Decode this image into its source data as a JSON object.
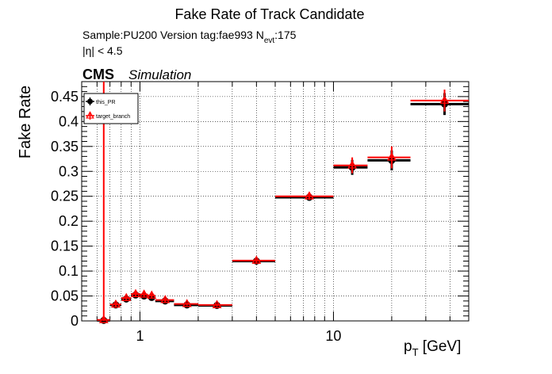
{
  "chart_data": {
    "type": "scatter",
    "title": "Fake Rate of Track Candidate",
    "info_line1": "Sample:PU200   Version tag:fae993  N",
    "info_line1_sub": "evt",
    "info_line1_tail": ":175",
    "info_line2": "|η| < 4.5",
    "cms_label": "CMS",
    "cms_sublabel": "Simulation",
    "xlabel_main": "p",
    "xlabel_sub": "T",
    "xlabel_unit": " [GeV]",
    "ylabel": "Fake Rate",
    "x_scale": "log",
    "xlim": [
      0.5,
      50
    ],
    "ylim": [
      0,
      0.48
    ],
    "grid": true,
    "legend_position": "top-left",
    "x_tick_labels": [
      {
        "value": 1,
        "label": "1"
      },
      {
        "value": 10,
        "label": "10"
      }
    ],
    "y_ticks": [
      {
        "value": 0,
        "label": "0"
      },
      {
        "value": 0.05,
        "label": "0.05"
      },
      {
        "value": 0.1,
        "label": "0.1"
      },
      {
        "value": 0.15,
        "label": "0.15"
      },
      {
        "value": 0.2,
        "label": "0.2"
      },
      {
        "value": 0.25,
        "label": "0.25"
      },
      {
        "value": 0.3,
        "label": "0.3"
      },
      {
        "value": 0.35,
        "label": "0.35"
      },
      {
        "value": 0.4,
        "label": "0.4"
      },
      {
        "value": 0.45,
        "label": "0.45"
      }
    ],
    "series": [
      {
        "name": "this_PR",
        "color": "#000000",
        "marker": "circle",
        "points": [
          {
            "x": 0.65,
            "xlo": 0.6,
            "xhi": 0.7,
            "y": 0.001,
            "yerr": 0.001
          },
          {
            "x": 0.75,
            "xlo": 0.7,
            "xhi": 0.8,
            "y": 0.032,
            "yerr": 0.003
          },
          {
            "x": 0.85,
            "xlo": 0.8,
            "xhi": 0.9,
            "y": 0.044,
            "yerr": 0.003
          },
          {
            "x": 0.95,
            "xlo": 0.9,
            "xhi": 1.0,
            "y": 0.052,
            "yerr": 0.004
          },
          {
            "x": 1.05,
            "xlo": 1.0,
            "xhi": 1.1,
            "y": 0.05,
            "yerr": 0.004
          },
          {
            "x": 1.15,
            "xlo": 1.1,
            "xhi": 1.2,
            "y": 0.047,
            "yerr": 0.004
          },
          {
            "x": 1.35,
            "xlo": 1.2,
            "xhi": 1.5,
            "y": 0.04,
            "yerr": 0.004
          },
          {
            "x": 1.75,
            "xlo": 1.5,
            "xhi": 2.0,
            "y": 0.032,
            "yerr": 0.003
          },
          {
            "x": 2.5,
            "xlo": 2.0,
            "xhi": 3.0,
            "y": 0.031,
            "yerr": 0.003
          },
          {
            "x": 4.0,
            "xlo": 3.0,
            "xhi": 5.0,
            "y": 0.12,
            "yerr": 0.004
          },
          {
            "x": 7.5,
            "xlo": 5.0,
            "xhi": 10.0,
            "y": 0.248,
            "yerr": 0.007
          },
          {
            "x": 12.5,
            "xlo": 10.0,
            "xhi": 15.0,
            "y": 0.308,
            "yerr": 0.015
          },
          {
            "x": 20.0,
            "xlo": 15.0,
            "xhi": 25.0,
            "y": 0.322,
            "yerr": 0.02
          },
          {
            "x": 37.5,
            "xlo": 25.0,
            "xhi": 50.0,
            "y": 0.435,
            "yerr": 0.022
          }
        ]
      },
      {
        "name": "target_branch",
        "color": "#ff0000",
        "marker": "triangle-open",
        "points": [
          {
            "x": 0.65,
            "xlo": 0.6,
            "xhi": 0.7,
            "y": 0.002,
            "yerr": 0.49
          },
          {
            "x": 0.75,
            "xlo": 0.7,
            "xhi": 0.8,
            "y": 0.033,
            "yerr": 0.004
          },
          {
            "x": 0.85,
            "xlo": 0.8,
            "xhi": 0.9,
            "y": 0.046,
            "yerr": 0.004
          },
          {
            "x": 0.95,
            "xlo": 0.9,
            "xhi": 1.0,
            "y": 0.054,
            "yerr": 0.005
          },
          {
            "x": 1.05,
            "xlo": 1.0,
            "xhi": 1.1,
            "y": 0.053,
            "yerr": 0.005
          },
          {
            "x": 1.15,
            "xlo": 1.1,
            "xhi": 1.2,
            "y": 0.051,
            "yerr": 0.005
          },
          {
            "x": 1.35,
            "xlo": 1.2,
            "xhi": 1.5,
            "y": 0.042,
            "yerr": 0.004
          },
          {
            "x": 1.75,
            "xlo": 1.5,
            "xhi": 2.0,
            "y": 0.034,
            "yerr": 0.003
          },
          {
            "x": 2.5,
            "xlo": 2.0,
            "xhi": 3.0,
            "y": 0.032,
            "yerr": 0.003
          },
          {
            "x": 4.0,
            "xlo": 3.0,
            "xhi": 5.0,
            "y": 0.121,
            "yerr": 0.004
          },
          {
            "x": 7.5,
            "xlo": 5.0,
            "xhi": 10.0,
            "y": 0.25,
            "yerr": 0.007
          },
          {
            "x": 12.5,
            "xlo": 10.0,
            "xhi": 15.0,
            "y": 0.312,
            "yerr": 0.016
          },
          {
            "x": 20.0,
            "xlo": 15.0,
            "xhi": 25.0,
            "y": 0.328,
            "yerr": 0.022
          },
          {
            "x": 37.5,
            "xlo": 25.0,
            "xhi": 50.0,
            "y": 0.442,
            "yerr": 0.022
          }
        ]
      }
    ]
  }
}
